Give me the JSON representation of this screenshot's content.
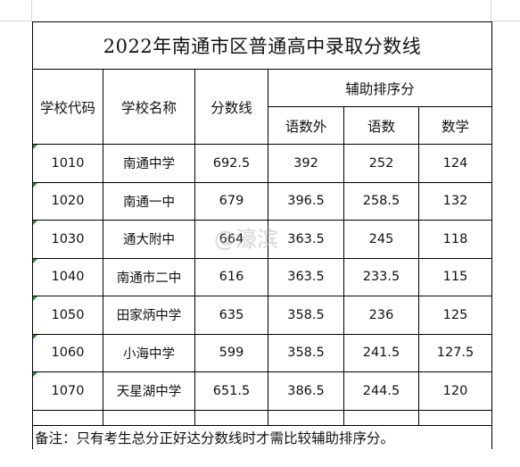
{
  "title": "2022年南通市区普通高中录取分数线",
  "headers": {
    "code": "学校代码",
    "name": "学校名称",
    "score": "分数线",
    "aux": "辅助排序分",
    "aux_cols": [
      "语数外",
      "语数",
      "数学"
    ]
  },
  "rows": [
    {
      "code": "1010",
      "name": "南通中学",
      "score": "692.5",
      "c": "392",
      "y": "252",
      "m": "124"
    },
    {
      "code": "1020",
      "name": "南通一中",
      "score": "679",
      "c": "396.5",
      "y": "258.5",
      "m": "132"
    },
    {
      "code": "1030",
      "name": "通大附中",
      "score": "664",
      "c": "363.5",
      "y": "245",
      "m": "118"
    },
    {
      "code": "1040",
      "name": "南通市二中",
      "score": "616",
      "c": "363.5",
      "y": "233.5",
      "m": "115"
    },
    {
      "code": "1050",
      "name": "田家炳中学",
      "score": "635",
      "c": "358.5",
      "y": "236",
      "m": "125"
    },
    {
      "code": "1060",
      "name": "小海中学",
      "score": "599",
      "c": "358.5",
      "y": "241.5",
      "m": "127.5"
    },
    {
      "code": "1070",
      "name": "天星湖中学",
      "score": "651.5",
      "c": "386.5",
      "y": "244.5",
      "m": "120"
    }
  ],
  "note": "备注：只有考生总分正好达分数线时才需比较辅助排序分。",
  "watermark": "@濠滨"
}
